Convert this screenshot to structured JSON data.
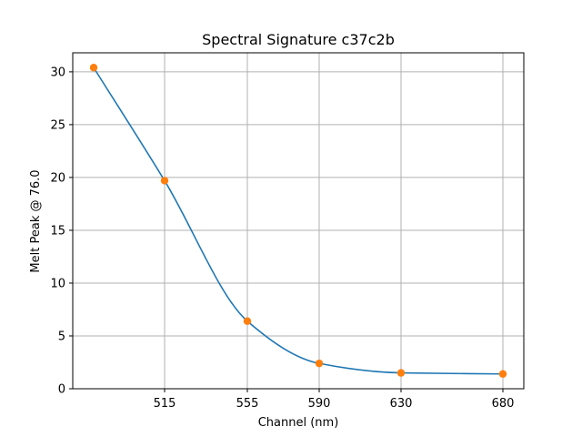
{
  "chart_data": {
    "type": "line",
    "title": "Spectral Signature c37c2b",
    "xlabel": "Channel (nm)",
    "ylabel": "Melt Peak @ 76.0",
    "x_tick_labels": [
      "515",
      "555",
      "590",
      "630",
      "680"
    ],
    "y_ticks": [
      0,
      5,
      10,
      15,
      20,
      25,
      30
    ],
    "ylim": [
      0,
      31.8
    ],
    "grid": true,
    "points": [
      30.4,
      19.7,
      6.4,
      2.4,
      1.5,
      1.4
    ],
    "colors": {
      "curve": "#1f77b4",
      "markers": "#ff7f0e",
      "grid": "#b0b0b0"
    }
  }
}
